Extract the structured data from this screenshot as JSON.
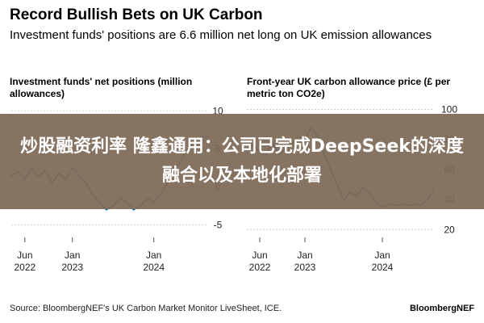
{
  "header": {
    "title": "Record Bullish Bets on UK Carbon",
    "subtitle": "Investment funds' positions are 6.6 million net long on UK emission allowances"
  },
  "overlay": {
    "text": "炒股融资利率 隆鑫通用：公司已完成DeepSeek的深度融合以及本地化部署"
  },
  "footer": {
    "source": "Source: BloombergNEF's UK Carbon Market Monitor LiveSheet, ICE.",
    "brand": "BloombergNEF"
  },
  "colors": {
    "series": "#1e6fa8",
    "grid": "#cfcfcf"
  },
  "chart_data": [
    {
      "type": "line",
      "title": "Investment funds' net positions (million allowances)",
      "x_ticks": [
        {
          "date": "2022-06",
          "line1": "Jun",
          "line2": "2022"
        },
        {
          "date": "2023-01",
          "line1": "Jan",
          "line2": "2023"
        },
        {
          "date": "2024-01",
          "line1": "Jan",
          "line2": "2024"
        }
      ],
      "y_ticks": [
        10,
        5,
        0,
        -5
      ],
      "ylim": [
        -6,
        11
      ],
      "xlim": [
        "2022-04",
        "2024-09"
      ],
      "grid": true,
      "series": [
        {
          "x": [
            "2022-04",
            "2022-05",
            "2022-06",
            "2022-07",
            "2022-08",
            "2022-09",
            "2022-10",
            "2022-11",
            "2022-12",
            "2023-01",
            "2023-02",
            "2023-03",
            "2023-04",
            "2023-05",
            "2023-06",
            "2023-07",
            "2023-08",
            "2023-09",
            "2023-10",
            "2023-11",
            "2023-12",
            "2024-01",
            "2024-02",
            "2024-03",
            "2024-04",
            "2024-05",
            "2024-06",
            "2024-07",
            "2024-08",
            "2024-09"
          ],
          "y": [
            1.5,
            2.0,
            1.0,
            2.5,
            1.2,
            2.2,
            0.5,
            1.8,
            1.0,
            2.5,
            1.5,
            0.5,
            -1.0,
            -2.0,
            -3.0,
            -2.5,
            -1.5,
            -2.0,
            -3.0,
            -2.5,
            -1.5,
            -2.0,
            -1.0,
            0.5,
            2.0,
            3.5,
            5.0,
            6.0,
            6.6,
            6.6
          ]
        }
      ]
    },
    {
      "type": "line",
      "title": "Front-year UK carbon allowance price (£ per metric ton CO2e)",
      "x_ticks": [
        {
          "date": "2022-06",
          "line1": "Jun",
          "line2": "2022"
        },
        {
          "date": "2023-01",
          "line1": "Jan",
          "line2": "2023"
        },
        {
          "date": "2024-01",
          "line1": "Jan",
          "line2": "2024"
        }
      ],
      "y_ticks": [
        100,
        80,
        60,
        40,
        20
      ],
      "ylim": [
        18,
        104
      ],
      "xlim": [
        "2022-04",
        "2024-09"
      ],
      "grid": true,
      "series": [
        {
          "x": [
            "2022-04",
            "2022-05",
            "2022-06",
            "2022-07",
            "2022-08",
            "2022-09",
            "2022-10",
            "2022-11",
            "2022-12",
            "2023-01",
            "2023-02",
            "2023-03",
            "2023-04",
            "2023-05",
            "2023-06",
            "2023-07",
            "2023-08",
            "2023-09",
            "2023-10",
            "2023-11",
            "2023-12",
            "2024-01",
            "2024-02",
            "2024-03",
            "2024-04",
            "2024-05",
            "2024-06",
            "2024-07",
            "2024-08",
            "2024-09"
          ],
          "y": [
            74,
            76,
            72,
            70,
            78,
            70,
            74,
            77,
            82,
            80,
            88,
            82,
            70,
            60,
            50,
            40,
            45,
            42,
            48,
            45,
            38,
            35,
            37,
            36,
            37,
            36,
            37,
            36,
            40,
            46
          ]
        }
      ]
    }
  ]
}
